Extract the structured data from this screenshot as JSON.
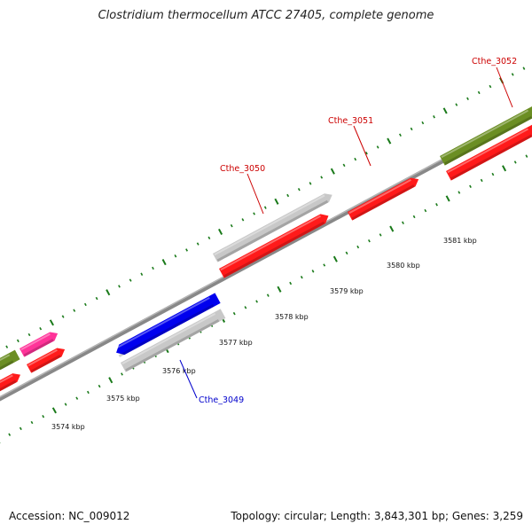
{
  "title": "Clostridium thermocellum ATCC 27405, complete genome",
  "accession": "Accession: NC_009012",
  "summary": "Topology: circular; Length: 3,843,301 bp; Genes: 3,259",
  "scale_labels": [
    "3574 kbp",
    "3575 kbp",
    "3576 kbp",
    "3577 kbp",
    "3578 kbp",
    "3579 kbp",
    "3580 kbp",
    "3581 kbp"
  ],
  "gene_labels": [
    {
      "name": "Cthe_3049",
      "color": "#0000cc"
    },
    {
      "name": "Cthe_3050",
      "color": "#cc0000"
    },
    {
      "name": "Cthe_3051",
      "color": "#cc0000"
    },
    {
      "name": "Cthe_3052",
      "color": "#cc0000"
    }
  ],
  "colors": {
    "backbone": "#888888",
    "tick": "#1a7a1a",
    "cds": "#ff1a1a",
    "highlight_blue": "#0000ee",
    "gray_feature": "#c8c8c8",
    "olive_feature": "#6b8e23",
    "magenta_feature": "#ff3399"
  }
}
